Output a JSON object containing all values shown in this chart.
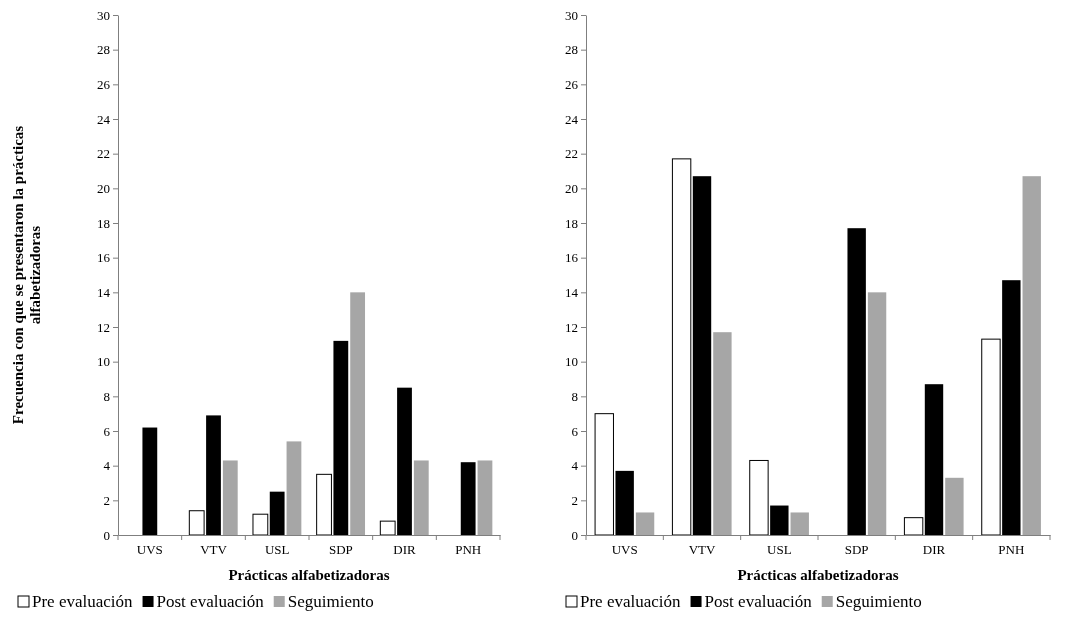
{
  "chart_data": [
    {
      "type": "bar",
      "xlabel": "Prácticas alfabetizadoras",
      "ylabel": "Frecuencia con que se presentaron la prácticas alfabetizadoras",
      "categories": [
        "UVS",
        "VTV",
        "USL",
        "SDP",
        "DIR",
        "PNH"
      ],
      "ylim": [
        0,
        30
      ],
      "yticks": [
        0,
        2,
        4,
        6,
        8,
        10,
        12,
        14,
        16,
        18,
        20,
        22,
        24,
        26,
        28,
        30
      ],
      "grid": false,
      "legend": "bottom",
      "series": [
        {
          "name": "Pre evaluación",
          "color": "#ffffff",
          "values": [
            0,
            1.4,
            1.2,
            3.5,
            0.8,
            0
          ]
        },
        {
          "name": "Post evaluación",
          "color": "#000000",
          "values": [
            6.2,
            6.9,
            2.5,
            11.2,
            8.5,
            4.2
          ]
        },
        {
          "name": "Seguimiento",
          "color": "#a6a6a6",
          "values": [
            0,
            4.3,
            5.4,
            14,
            4.3,
            4.3
          ]
        }
      ]
    },
    {
      "type": "bar",
      "xlabel": "Prácticas alfabetizadoras",
      "categories": [
        "UVS",
        "VTV",
        "USL",
        "SDP",
        "DIR",
        "PNH"
      ],
      "ylim": [
        0,
        30
      ],
      "yticks": [
        0,
        2,
        4,
        6,
        8,
        10,
        12,
        14,
        16,
        18,
        20,
        22,
        24,
        26,
        28,
        30
      ],
      "grid": false,
      "legend": "bottom",
      "series": [
        {
          "name": "Pre evaluación",
          "color": "#ffffff",
          "values": [
            7,
            21.7,
            4.3,
            0,
            1,
            11.3
          ]
        },
        {
          "name": "Post evaluación",
          "color": "#000000",
          "values": [
            3.7,
            20.7,
            1.7,
            17.7,
            8.7,
            14.7
          ]
        },
        {
          "name": "Seguimiento",
          "color": "#a6a6a6",
          "values": [
            1.3,
            11.7,
            1.3,
            14,
            3.3,
            20.7
          ]
        }
      ]
    }
  ]
}
